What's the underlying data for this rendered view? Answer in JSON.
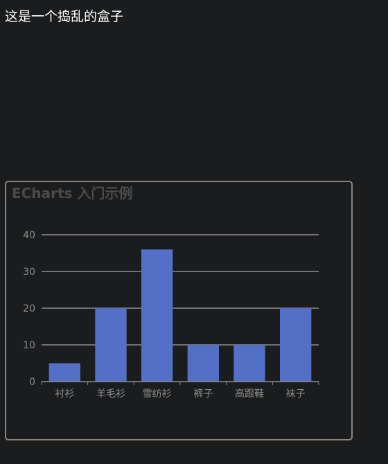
{
  "page": {
    "top_text": "这是一个捣乱的盒子"
  },
  "chart_data": {
    "type": "bar",
    "title": "ECharts 入门示例",
    "categories": [
      "衬衫",
      "羊毛衫",
      "雪纺衫",
      "裤子",
      "高跟鞋",
      "袜子"
    ],
    "values": [
      5,
      20,
      36,
      10,
      10,
      20
    ],
    "ylim": [
      0,
      40
    ],
    "yticks": [
      0,
      10,
      20,
      30,
      40
    ],
    "grid": true,
    "colors": {
      "bar": "#5470c6",
      "grid": "#c8c8c8",
      "axis": "#8e8e8e",
      "title": "#4a4a4a"
    }
  }
}
